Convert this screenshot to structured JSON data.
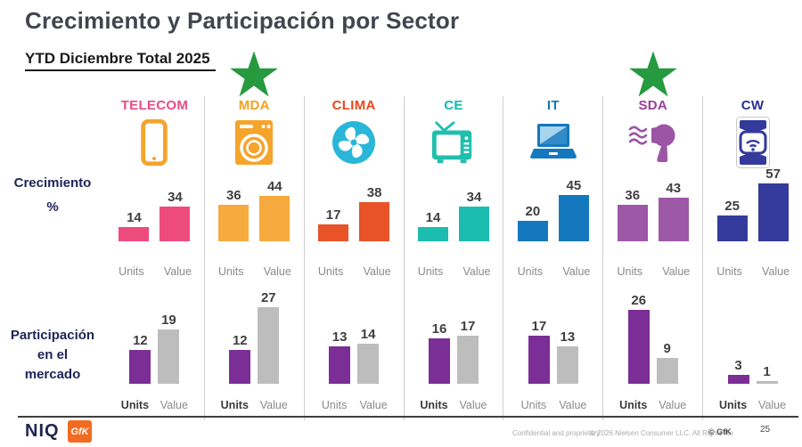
{
  "header": {
    "title": "Crecimiento y Participación  por Sector",
    "subtitle": "YTD Diciembre Total  2025"
  },
  "row_labels": {
    "growth_line": "Crecimiento",
    "growth_unit": "%",
    "share_lines": [
      "Participación",
      "en el",
      "mercado"
    ]
  },
  "axis": {
    "units": "Units",
    "value": "Value"
  },
  "chart_data": {
    "type": "bar",
    "title": "Crecimiento y Participación por Sector",
    "subtitle": "YTD Diciembre Total 2025",
    "row_groups": [
      {
        "id": "growth",
        "label": "Crecimiento %",
        "bar_categories": [
          "Units",
          "Value"
        ]
      },
      {
        "id": "share",
        "label": "Participación en el mercado",
        "bar_categories": [
          "Units",
          "Value"
        ]
      }
    ],
    "starred_sectors": [
      "MDA",
      "SDA"
    ],
    "star_color": "#259A3F",
    "share_bar_colors": {
      "units": "#7B2E96",
      "value": "#BDBDBD"
    },
    "sectors": [
      {
        "name": "TELECOM",
        "label_color": "#E94C86",
        "bar_color": "#EE4B7D",
        "icon": "smartphone-icon",
        "icon_color": "#F5A42C",
        "starred": false,
        "growth": {
          "units": 14,
          "value": 34
        },
        "share": {
          "units": 12,
          "value": 19
        },
        "share_units_bold": true
      },
      {
        "name": "MDA",
        "label_color": "#F5A01E",
        "bar_color": "#F6A93C",
        "icon": "washing-machine-icon",
        "icon_color": "#F5A42C",
        "starred": true,
        "growth": {
          "units": 36,
          "value": 44
        },
        "share": {
          "units": 12,
          "value": 27
        },
        "share_units_bold": true
      },
      {
        "name": "CLIMA",
        "label_color": "#E8481C",
        "bar_color": "#E85328",
        "icon": "fan-icon",
        "icon_color": "#29B6D8",
        "starred": false,
        "growth": {
          "units": 17,
          "value": 38
        },
        "share": {
          "units": 13,
          "value": 14
        },
        "share_units_bold": false
      },
      {
        "name": "CE",
        "label_color": "#14B8AE",
        "bar_color": "#1CBCB0",
        "icon": "tv-icon",
        "icon_color": "#1FBFAD",
        "starred": false,
        "growth": {
          "units": 14,
          "value": 34
        },
        "share": {
          "units": 16,
          "value": 17
        },
        "share_units_bold": true
      },
      {
        "name": "IT",
        "label_color": "#1478BE",
        "bar_color": "#1478BE",
        "icon": "laptop-icon",
        "icon_color": "#1478BE",
        "starred": false,
        "growth": {
          "units": 20,
          "value": 45
        },
        "share": {
          "units": 17,
          "value": 13
        },
        "share_units_bold": false
      },
      {
        "name": "SDA",
        "label_color": "#9A3E9B",
        "bar_color": "#9D58A6",
        "icon": "hair-dryer-icon",
        "icon_color": "#9C55A5",
        "starred": true,
        "growth": {
          "units": 36,
          "value": 43
        },
        "share": {
          "units": 26,
          "value": 9
        },
        "share_units_bold": true
      },
      {
        "name": "CW",
        "label_color": "#2A3192",
        "bar_color": "#343B9C",
        "icon": "smartwatch-icon",
        "icon_color": "#333A9C",
        "starred": false,
        "growth": {
          "units": 25,
          "value": 57
        },
        "share": {
          "units": 3,
          "value": 1
        },
        "share_units_bold": true
      }
    ]
  },
  "footer": {
    "brand_primary": "NIQ",
    "brand_secondary": "GfK",
    "confidential": "Confidential and proprietary",
    "copyright": "© 2026 Nielsen Consumer LLC. All Rights Re",
    "copyright_brand": "© GfK",
    "page_number": "25"
  }
}
